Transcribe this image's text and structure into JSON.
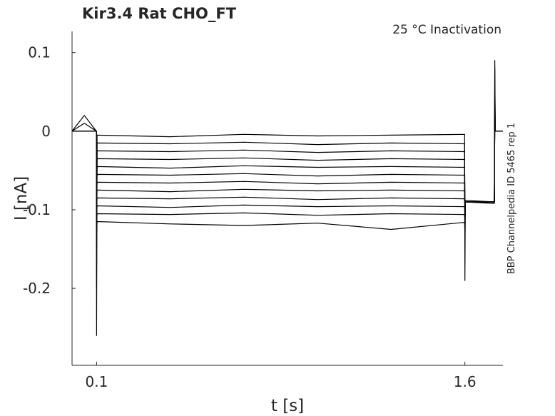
{
  "chart_data": {
    "type": "line",
    "title": "Kir3.4  Rat  CHO_FT",
    "annotation": "25 °C  Inactivation",
    "side_note": "BBP Channelpedia ID 5465 rep 1",
    "x_label": "t [s]",
    "y_label": "I [nA]",
    "xlim": [
      0,
      1.755
    ],
    "ylim": [
      -0.298,
      0.127
    ],
    "xticks": [
      0.1,
      1.6
    ],
    "yticks": [
      0.1,
      0,
      -0.1,
      -0.2
    ],
    "x": [
      0,
      0.05,
      0.099,
      0.1,
      0.102,
      0.4,
      0.7,
      1.0,
      1.3,
      1.599,
      1.6,
      1.602,
      1.72,
      1.722,
      1.724,
      1.754
    ],
    "series": [
      {
        "color": "#000000",
        "values": [
          0,
          0.02,
          0,
          -0.26,
          -0.005,
          -0.007,
          -0.004,
          -0.006,
          -0.005,
          -0.004,
          -0.19,
          -0.09,
          -0.092,
          0.09,
          0,
          0
        ]
      },
      {
        "color": "#000000",
        "values": [
          0,
          0.01,
          0,
          -0.2,
          -0.015,
          -0.016,
          -0.014,
          -0.017,
          -0.015,
          -0.016,
          -0.15,
          -0.09,
          -0.09,
          0.08,
          0,
          0
        ]
      },
      {
        "color": "#000000",
        "values": [
          0,
          0,
          0,
          -0.15,
          -0.025,
          -0.026,
          -0.024,
          -0.027,
          -0.025,
          -0.026,
          -0.12,
          -0.088,
          -0.09,
          0.06,
          0,
          0
        ]
      },
      {
        "color": "#000000",
        "values": [
          0,
          0,
          0,
          -0.12,
          -0.035,
          -0.036,
          -0.034,
          -0.037,
          -0.035,
          -0.036,
          -0.1,
          -0.09,
          -0.09,
          0.04,
          0,
          0
        ]
      },
      {
        "color": "#000000",
        "values": [
          0,
          0,
          0,
          -0.1,
          -0.045,
          -0.047,
          -0.044,
          -0.046,
          -0.045,
          -0.046,
          -0.1,
          -0.09,
          -0.09,
          0.03,
          0,
          0
        ]
      },
      {
        "color": "#000000",
        "values": [
          0,
          0,
          0,
          -0.1,
          -0.055,
          -0.056,
          -0.054,
          -0.057,
          -0.055,
          -0.056,
          -0.1,
          -0.09,
          -0.09,
          0.02,
          0,
          0
        ]
      },
      {
        "color": "#000000",
        "values": [
          0,
          0,
          0,
          -0.1,
          -0.065,
          -0.066,
          -0.064,
          -0.067,
          -0.065,
          -0.066,
          -0.1,
          -0.09,
          -0.09,
          0.02,
          0,
          0
        ]
      },
      {
        "color": "#000000",
        "values": [
          0,
          0,
          0,
          -0.1,
          -0.075,
          -0.077,
          -0.074,
          -0.076,
          -0.075,
          -0.076,
          -0.1,
          -0.09,
          -0.09,
          0.02,
          0,
          0
        ]
      },
      {
        "color": "#000000",
        "values": [
          0,
          0,
          0,
          -0.1,
          -0.085,
          -0.086,
          -0.084,
          -0.087,
          -0.085,
          -0.086,
          -0.1,
          -0.09,
          -0.09,
          0.02,
          0,
          0
        ]
      },
      {
        "color": "#000000",
        "values": [
          0,
          0,
          0,
          -0.11,
          -0.095,
          -0.097,
          -0.094,
          -0.096,
          -0.095,
          -0.096,
          -0.11,
          -0.09,
          -0.09,
          0.02,
          0,
          0
        ]
      },
      {
        "color": "#000000",
        "values": [
          0,
          0,
          0,
          -0.12,
          -0.105,
          -0.106,
          -0.104,
          -0.107,
          -0.105,
          -0.106,
          -0.12,
          -0.09,
          -0.09,
          0.02,
          0,
          0
        ]
      },
      {
        "color": "#000000",
        "values": [
          0,
          0,
          0,
          -0.13,
          -0.115,
          -0.118,
          -0.12,
          -0.117,
          -0.125,
          -0.116,
          -0.13,
          -0.09,
          -0.09,
          0.02,
          0,
          0
        ]
      }
    ]
  }
}
